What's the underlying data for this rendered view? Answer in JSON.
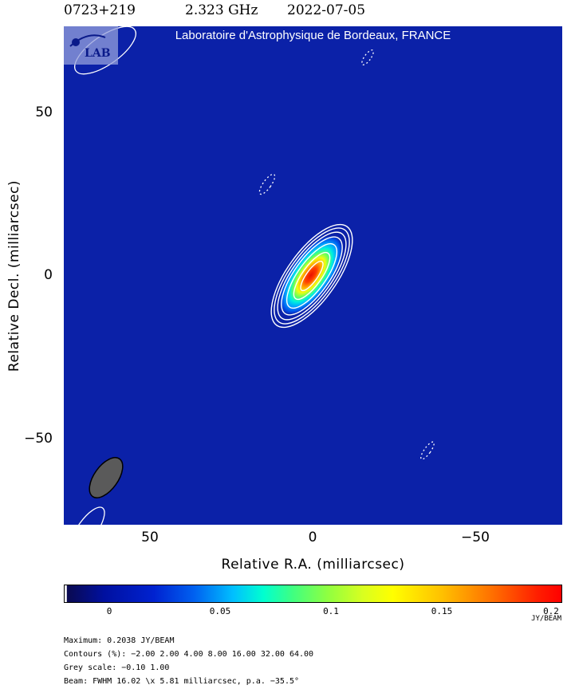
{
  "header": {
    "source": "0723+219",
    "frequency": "2.323 GHz",
    "date": "2022-07-05"
  },
  "map": {
    "credit": "Laboratoire d'Astrophysique de Bordeaux, FRANCE",
    "logo_text": "LAB",
    "background_color": "#0b21a8",
    "contour_color": "#ffffff"
  },
  "axes": {
    "ylabel": "Relative Decl. (milliarcsec)",
    "xlabel": "Relative R.A. (milliarcsec)",
    "y_ticks": [
      "50",
      "0",
      "−50"
    ],
    "x_ticks": [
      "50",
      "0",
      "−50"
    ]
  },
  "colorbar": {
    "ticks": [
      "0",
      "0.05",
      "0.1",
      "0.15",
      "0.2"
    ],
    "unit": "JY/BEAM"
  },
  "info": {
    "maximum": "Maximum: 0.2038 JY/BEAM",
    "contours": "Contours (%): −2.00 2.00 4.00 8.00 16.00 32.00 64.00",
    "grey_scale": "Grey scale: −0.10 1.00",
    "beam": "Beam: FWHM 16.02 \\x 5.81 milliarcsec, p.a. −35.5°"
  }
}
